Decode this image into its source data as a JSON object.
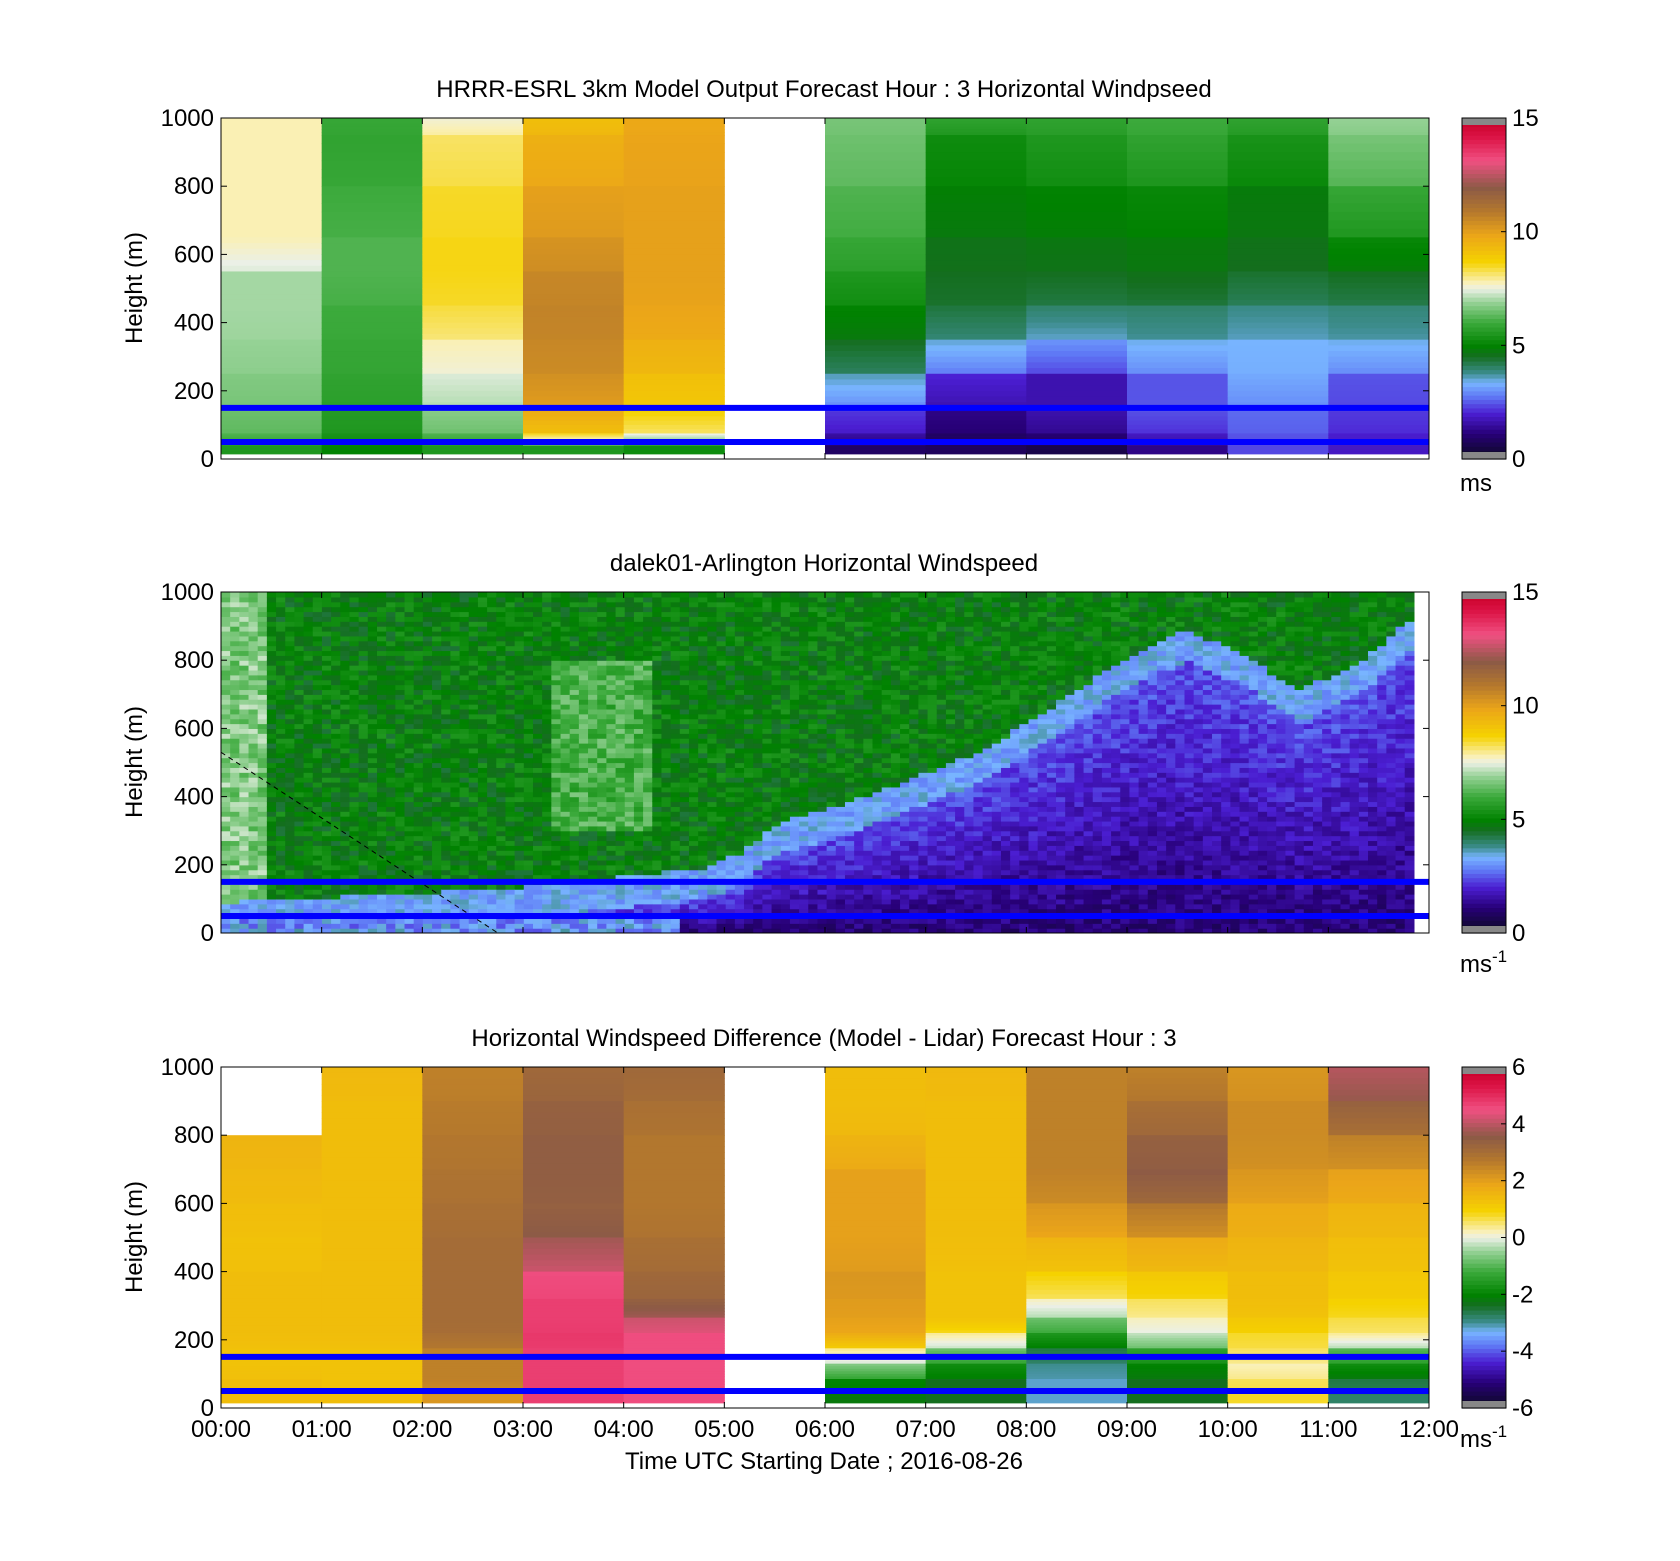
{
  "figure": {
    "xlabel": "Time UTC  Starting Date ; 2016-08-26",
    "x_tick_labels": [
      "00:00",
      "01:00",
      "02:00",
      "03:00",
      "04:00",
      "05:00",
      "06:00",
      "07:00",
      "08:00",
      "09:00",
      "10:00",
      "11:00",
      "12:00"
    ]
  },
  "colors": {
    "reference_lines": "#0000ff",
    "missing_data": "#ffffff"
  },
  "chart_data": [
    {
      "type": "heatmap",
      "title": "HRRR-ESRL 3km Model Output   Forecast Hour : 3 Horizontal Windpseed",
      "ylabel": "Height (m)",
      "ylim": [
        0,
        1000
      ],
      "y_ticks": [
        "0",
        "200",
        "400",
        "600",
        "800",
        "1000"
      ],
      "colorbar": {
        "min": 0,
        "max": 15,
        "ticks": [
          "0",
          "5",
          "10",
          "15"
        ],
        "units": "ms",
        "units_sup": ""
      },
      "reference_lines_m": [
        50,
        150
      ],
      "x_hours": [
        0,
        1,
        2,
        3,
        4,
        5,
        6,
        7,
        8,
        9,
        10,
        11
      ],
      "y_levels": [
        1000,
        900,
        700,
        600,
        500,
        400,
        300,
        200,
        100,
        50,
        30
      ],
      "columns": [
        {
          "hour": 0,
          "values": [
            7.8,
            7.8,
            7.8,
            7.8,
            7.0,
            7.0,
            6.9,
            6.7,
            6.5,
            6.2,
            5.5
          ]
        },
        {
          "hour": 1,
          "values": [
            5.9,
            5.8,
            6.0,
            6.2,
            6.2,
            6.0,
            5.9,
            5.8,
            5.6,
            5.4,
            5.0
          ]
        },
        {
          "hour": 2,
          "values": [
            7.6,
            8.2,
            8.5,
            8.6,
            8.6,
            8.4,
            7.8,
            7.4,
            6.8,
            6.2,
            5.5
          ]
        },
        {
          "hour": 3,
          "values": [
            9.2,
            9.6,
            10.0,
            10.3,
            10.6,
            10.7,
            10.6,
            10.4,
            9.8,
            8.6,
            5.5
          ]
        },
        {
          "hour": 4,
          "values": [
            9.8,
            9.9,
            10.0,
            10.0,
            10.0,
            9.9,
            9.6,
            9.2,
            8.8,
            7.6,
            5.2
          ]
        },
        {
          "hour": 5,
          "values": [
            null,
            null,
            null,
            null,
            null,
            null,
            null,
            null,
            null,
            null,
            null
          ]
        },
        {
          "hour": 6,
          "values": [
            6.6,
            6.5,
            6.2,
            5.9,
            5.5,
            5.0,
            4.5,
            3.6,
            2.2,
            1.5,
            0.8
          ]
        },
        {
          "hour": 7,
          "values": [
            5.8,
            5.2,
            4.9,
            4.6,
            4.5,
            4.3,
            3.5,
            2.0,
            1.2,
            0.8,
            0.7
          ]
        },
        {
          "hour": 8,
          "values": [
            5.8,
            5.5,
            5.0,
            4.7,
            4.5,
            4.0,
            3.0,
            1.6,
            1.6,
            1.0,
            0.5
          ]
        },
        {
          "hour": 9,
          "values": [
            6.0,
            5.8,
            5.1,
            4.8,
            4.6,
            4.0,
            3.4,
            2.4,
            2.4,
            1.8,
            1.2
          ]
        },
        {
          "hour": 10,
          "values": [
            5.8,
            5.4,
            4.8,
            4.6,
            4.4,
            3.8,
            3.3,
            3.2,
            2.6,
            2.4,
            2.3
          ]
        },
        {
          "hour": 11,
          "values": [
            6.9,
            6.6,
            5.9,
            5.1,
            4.5,
            3.9,
            3.4,
            2.4,
            2.2,
            1.9,
            1.8
          ]
        }
      ]
    },
    {
      "type": "heatmap",
      "title": "dalek01-Arlington  Horizontal Windspeed",
      "ylabel": "Height (m)",
      "ylim": [
        0,
        1000
      ],
      "y_ticks": [
        "0",
        "200",
        "400",
        "600",
        "800",
        "1000"
      ],
      "colorbar": {
        "min": 0,
        "max": 15,
        "ticks": [
          "0",
          "5",
          "10",
          "15"
        ],
        "units": "ms",
        "units_sup": "-1"
      },
      "reference_lines_m": [
        50,
        150
      ],
      "x_range_hours": [
        0,
        11.85
      ],
      "shear_layer_top_m": [
        [
          0,
          0
        ],
        [
          2.8,
          40
        ],
        [
          4.8,
          100
        ],
        [
          5.2,
          150
        ],
        [
          5.5,
          230
        ],
        [
          6.3,
          300
        ],
        [
          7.0,
          380
        ],
        [
          7.6,
          450
        ],
        [
          8.4,
          600
        ],
        [
          9.0,
          720
        ],
        [
          9.6,
          800
        ],
        [
          10.2,
          720
        ],
        [
          10.7,
          620
        ],
        [
          11.3,
          700
        ],
        [
          11.85,
          840
        ]
      ],
      "overlay_dashed_line": [
        [
          0,
          530
        ],
        [
          2.75,
          0
        ]
      ]
    },
    {
      "type": "heatmap",
      "title": "Horizontal Windspeed Difference (Model - Lidar) Forecast Hour : 3",
      "ylabel": "Height (m)",
      "ylim": [
        0,
        1000
      ],
      "y_ticks": [
        "0",
        "200",
        "400",
        "600",
        "800",
        "1000"
      ],
      "colorbar": {
        "min": -6,
        "max": 6,
        "ticks": [
          "-6",
          "-4",
          "-2",
          "0",
          "2",
          "4",
          "6"
        ],
        "units": "ms",
        "units_sup": "-1"
      },
      "reference_lines_m": [
        50,
        150
      ],
      "x_hours": [
        0,
        1,
        2,
        3,
        4,
        5,
        6,
        7,
        8,
        9,
        10,
        11
      ],
      "y_levels": [
        950,
        850,
        750,
        650,
        550,
        450,
        350,
        290,
        240,
        200,
        150,
        110,
        60,
        20
      ],
      "columns": [
        {
          "hour": 0,
          "values": [
            null,
            null,
            1.6,
            1.5,
            1.4,
            1.3,
            1.4,
            1.4,
            1.4,
            1.4,
            1.3,
            1.3,
            1.4,
            1.4
          ]
        },
        {
          "hour": 1,
          "values": [
            1.5,
            1.4,
            1.4,
            1.4,
            1.4,
            1.4,
            1.4,
            1.4,
            1.4,
            1.4,
            1.3,
            1.3,
            1.3,
            1.4
          ]
        },
        {
          "hour": 2,
          "values": [
            2.6,
            2.7,
            2.8,
            2.9,
            3.0,
            3.1,
            3.1,
            3.1,
            3.1,
            3.0,
            2.6,
            2.6,
            2.6,
            2.2
          ]
        },
        {
          "hour": 3,
          "values": [
            3.2,
            3.4,
            3.5,
            3.5,
            3.4,
            3.8,
            4.6,
            4.8,
            4.8,
            4.9,
            4.8,
            4.8,
            4.8,
            4.8
          ]
        },
        {
          "hour": 4,
          "values": [
            3.2,
            3.0,
            2.8,
            2.8,
            2.8,
            3.0,
            3.2,
            3.4,
            4.2,
            4.6,
            4.6,
            4.6,
            4.6,
            4.6
          ]
        },
        {
          "hour": 5,
          "values": [
            null,
            null,
            null,
            null,
            null,
            null,
            null,
            null,
            null,
            null,
            null,
            null,
            null,
            null
          ]
        },
        {
          "hour": 6,
          "values": [
            1.4,
            1.4,
            1.6,
            2.0,
            2.0,
            2.0,
            2.2,
            2.1,
            2.0,
            1.8,
            0.4,
            -0.6,
            -2.0,
            -2.2
          ]
        },
        {
          "hour": 7,
          "values": [
            1.5,
            1.4,
            1.4,
            1.4,
            1.4,
            1.4,
            1.3,
            1.3,
            1.3,
            0.4,
            -0.8,
            -1.8,
            -2.4,
            -2.4
          ]
        },
        {
          "hour": 8,
          "values": [
            2.6,
            2.6,
            2.6,
            2.6,
            2.2,
            1.6,
            1.0,
            0.2,
            -0.8,
            -1.6,
            -2.6,
            -3.0,
            -3.2,
            -3.2
          ]
        },
        {
          "hour": 9,
          "values": [
            2.6,
            3.0,
            3.4,
            3.6,
            2.8,
            1.8,
            1.2,
            0.6,
            0.2,
            -0.2,
            -1.4,
            -2.0,
            -2.4,
            -2.4
          ]
        },
        {
          "hour": 10,
          "values": [
            2.2,
            2.4,
            2.4,
            2.2,
            1.8,
            1.6,
            1.4,
            1.4,
            1.2,
            0.8,
            0.6,
            0.2,
            0.6,
            0.8
          ]
        },
        {
          "hour": 11,
          "values": [
            4.0,
            3.4,
            2.6,
            2.0,
            1.6,
            1.4,
            1.2,
            1.0,
            0.7,
            0.4,
            -1.0,
            -1.8,
            -2.6,
            -2.8
          ]
        }
      ]
    }
  ]
}
